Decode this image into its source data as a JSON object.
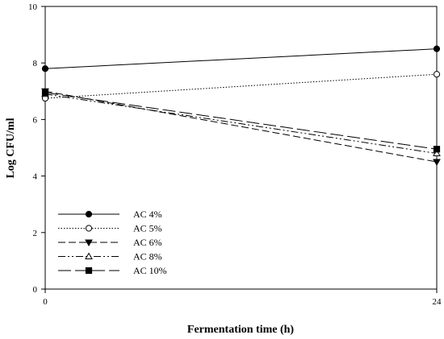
{
  "chart_data": {
    "type": "line",
    "title": "",
    "xlabel": "Fermentation time (h)",
    "ylabel": "Log CFU/ml",
    "x": [
      0,
      24
    ],
    "x_ticks": [
      "0",
      "24"
    ],
    "y_ticks": [
      "0",
      "2",
      "4",
      "6",
      "8",
      "10"
    ],
    "xlim": [
      0,
      24
    ],
    "ylim": [
      0,
      10
    ],
    "grid": false,
    "legend_position": "bottom-left",
    "series": [
      {
        "name": "AC 4%",
        "values": [
          7.8,
          8.5
        ],
        "marker": "filled-circle",
        "dash": "solid"
      },
      {
        "name": "AC 5%",
        "values": [
          6.75,
          7.6
        ],
        "marker": "open-circle",
        "dash": "dotted"
      },
      {
        "name": "AC 6%",
        "values": [
          7.0,
          4.5
        ],
        "marker": "filled-triangle-down",
        "dash": "dashed"
      },
      {
        "name": "AC 8%",
        "values": [
          6.9,
          4.8
        ],
        "marker": "open-triangle-up",
        "dash": "dash-dot-dot"
      },
      {
        "name": "AC 10%",
        "values": [
          6.95,
          4.95
        ],
        "marker": "filled-square",
        "dash": "long-dash"
      }
    ]
  }
}
